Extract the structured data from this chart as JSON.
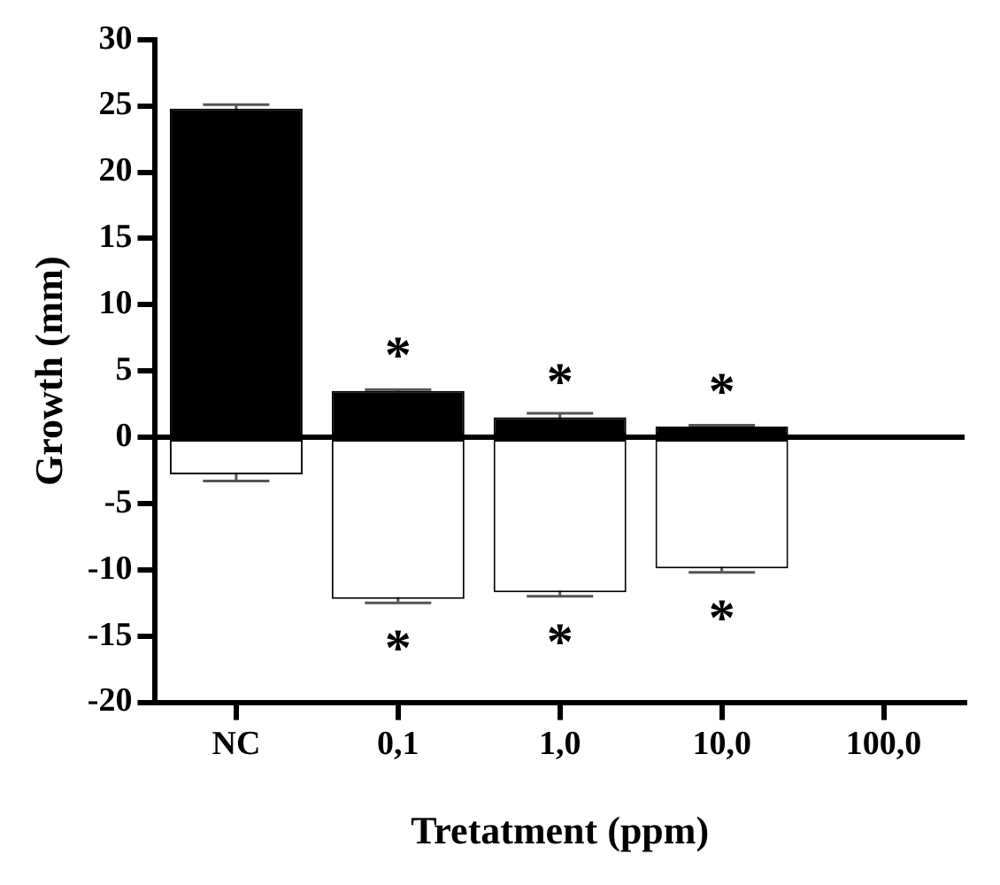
{
  "chart_data": {
    "type": "bar",
    "xlabel": "Tretatment (ppm)",
    "ylabel": "Growth (mm)",
    "categories": [
      "NC",
      "0,1",
      "1,0",
      "10,0",
      "100,0"
    ],
    "stacked": true,
    "series": [
      {
        "color": "#000000",
        "values": [
          24.8,
          3.5,
          1.5,
          0.8,
          null
        ],
        "errors": [
          0.3,
          0.1,
          0.3,
          0.1,
          null
        ]
      },
      {
        "color": "#ffffff",
        "values": [
          -2.8,
          -12.2,
          -11.7,
          -9.9,
          null
        ],
        "errors": [
          0.5,
          0.3,
          0.3,
          0.3,
          null
        ]
      }
    ],
    "ylim": [
      -20,
      30
    ],
    "yticks": [
      -20,
      -15,
      -10,
      -5,
      0,
      5,
      10,
      15,
      20,
      25,
      30
    ],
    "ref_lines": [
      {
        "axis": "y",
        "value": 0,
        "color": "#000000"
      }
    ],
    "annotations": [
      {
        "text": "*",
        "x": "0,1",
        "y": 3.5
      },
      {
        "text": "*",
        "x": "1,0",
        "y": 1.5
      },
      {
        "text": "*",
        "x": "10,0",
        "y": 0.8
      },
      {
        "text": "*",
        "x": "0,1",
        "y": -12.2
      },
      {
        "text": "*",
        "x": "1,0",
        "y": -11.7
      },
      {
        "text": "*",
        "x": "10,0",
        "y": -9.9
      }
    ],
    "grid": false,
    "legend": false
  }
}
